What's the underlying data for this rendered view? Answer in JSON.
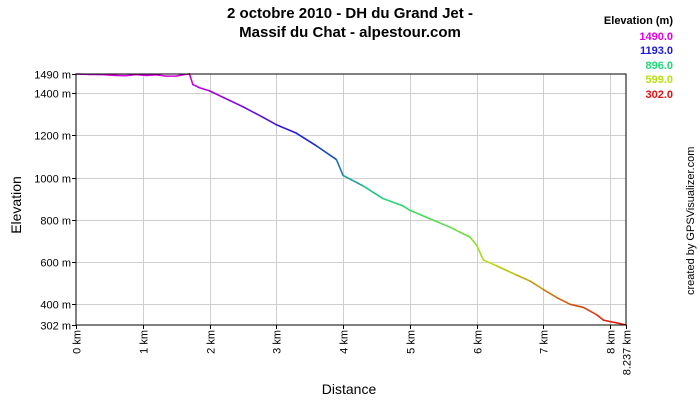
{
  "title_line1": "2 octobre 2010 - DH du Grand Jet -",
  "title_line2": "Massif du Chat - alpestour.com",
  "legend": {
    "title": "Elevation (m)",
    "items": [
      {
        "label": "1490.0",
        "color": "#e000e0"
      },
      {
        "label": "1193.0",
        "color": "#1a1ad8"
      },
      {
        "label": "896.0",
        "color": "#20d878"
      },
      {
        "label": "599.0",
        "color": "#b8e010"
      },
      {
        "label": "302.0",
        "color": "#e01010"
      }
    ]
  },
  "credit": "created by GPSVisualizer.com",
  "chart_data": {
    "type": "line",
    "xlabel": "Distance",
    "ylabel": "Elevation",
    "x_unit": "km",
    "xlim": [
      0,
      8.237
    ],
    "ylim": [
      302,
      1490
    ],
    "y_ticks": [
      {
        "value": 1490,
        "label": "1490 m"
      },
      {
        "value": 1400,
        "label": "1400 m"
      },
      {
        "value": 1200,
        "label": "1200 m"
      },
      {
        "value": 1000,
        "label": "1000 m"
      },
      {
        "value": 800,
        "label": "800 m"
      },
      {
        "value": 600,
        "label": "600 m"
      },
      {
        "value": 400,
        "label": "400 m"
      },
      {
        "value": 302,
        "label": "302 m"
      }
    ],
    "x_ticks": [
      {
        "value": 0,
        "label": "0 km"
      },
      {
        "value": 1,
        "label": "1 km"
      },
      {
        "value": 2,
        "label": "2 km"
      },
      {
        "value": 3,
        "label": "3 km"
      },
      {
        "value": 4,
        "label": "4 km"
      },
      {
        "value": 5,
        "label": "5 km"
      },
      {
        "value": 6,
        "label": "6 km"
      },
      {
        "value": 7,
        "label": "7 km"
      },
      {
        "value": 8,
        "label": "8 km"
      },
      {
        "value": 8.237,
        "label": "8.237 km"
      }
    ],
    "grid": true,
    "series": [
      {
        "x": [
          0,
          0.2,
          0.4,
          0.6,
          0.75,
          0.9,
          1.05,
          1.2,
          1.35,
          1.5,
          1.6,
          1.7,
          1.75,
          1.85,
          2.0,
          2.2,
          2.5,
          2.8,
          3.0,
          3.3,
          3.6,
          3.9,
          4.0,
          4.3,
          4.6,
          4.9,
          5.0,
          5.3,
          5.6,
          5.9,
          6.0,
          6.1,
          6.3,
          6.6,
          6.8,
          7.0,
          7.2,
          7.4,
          7.6,
          7.8,
          7.9,
          8.0,
          8.1,
          8.237
        ],
        "y": [
          1490,
          1488,
          1487,
          1483,
          1482,
          1487,
          1483,
          1486,
          1480,
          1480,
          1486,
          1490,
          1440,
          1425,
          1410,
          1380,
          1335,
          1285,
          1250,
          1210,
          1150,
          1085,
          1010,
          960,
          900,
          865,
          845,
          805,
          765,
          718,
          680,
          610,
          582,
          538,
          510,
          470,
          432,
          400,
          385,
          350,
          325,
          318,
          312,
          302
        ]
      }
    ]
  }
}
